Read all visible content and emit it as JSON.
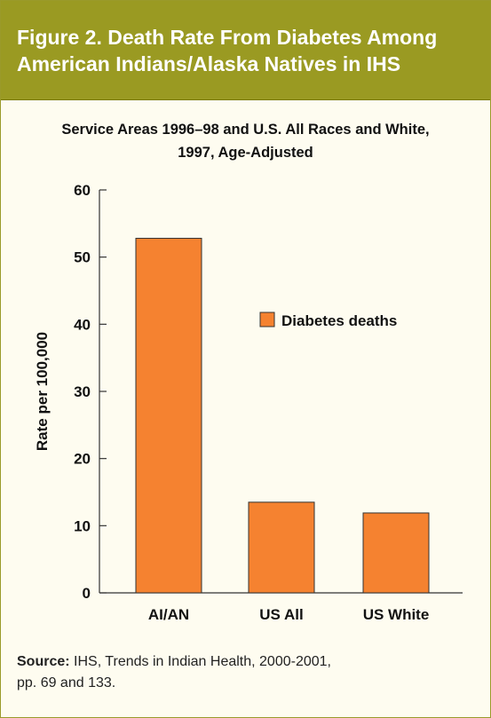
{
  "header": {
    "title_line1": "Figure 2. Death Rate From Diabetes Among",
    "title_line2": "American Indians/Alaska Natives in IHS"
  },
  "colors": {
    "header_bg": "#9a9a22",
    "bar": "#f58230",
    "bar_stroke": "#333333",
    "card_bg": "#fefcf0"
  },
  "source": {
    "label": "Source:",
    "text_line1": "IHS, Trends in Indian Health, 2000-2001,",
    "text_line2": "pp. 69 and 133."
  },
  "chart_data": {
    "type": "bar",
    "title": "Service Areas 1996–98 and U.S. All Races and White, 1997, Age-Adjusted",
    "title_line1": "Service Areas 1996–98 and U.S. All Races and White,",
    "title_line2": "1997, Age-Adjusted",
    "categories": [
      "AI/AN",
      "US All",
      "US White"
    ],
    "series": [
      {
        "name": "Diabetes deaths",
        "values": [
          52.8,
          13.5,
          11.9
        ]
      }
    ],
    "xlabel": "",
    "ylabel": "Rate per 100,000",
    "ylim": [
      0,
      60
    ],
    "yticks": [
      0,
      10,
      20,
      30,
      40,
      50,
      60
    ],
    "grid": false,
    "legend_position": "center-right"
  }
}
